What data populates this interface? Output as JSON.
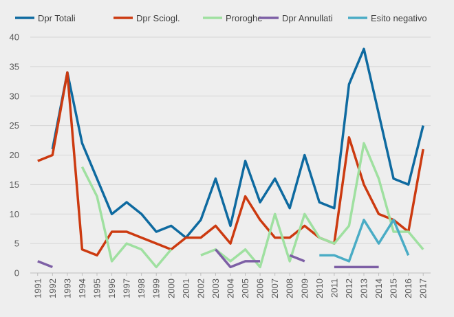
{
  "chart_data": {
    "type": "line",
    "title": "",
    "xlabel": "",
    "ylabel": "",
    "ylim": [
      0,
      40
    ],
    "yticks": [
      "0",
      "5",
      "10",
      "15",
      "20",
      "25",
      "30",
      "35",
      "40"
    ],
    "grid": "horizontal",
    "legend_position": "top",
    "categories": [
      "1991",
      "1992",
      "1993",
      "1994",
      "1995",
      "1996",
      "1997",
      "1998",
      "1999",
      "2000",
      "2001",
      "2002",
      "2003",
      "2004",
      "2005",
      "2006",
      "2007",
      "2008",
      "2009",
      "2010",
      "2011",
      "2012",
      "2013",
      "2014",
      "2015",
      "2016",
      "2017"
    ],
    "series": [
      {
        "name": "Dpr Totali",
        "color": "#0e6aa0",
        "values": [
          null,
          21,
          34,
          22,
          16,
          10,
          12,
          10,
          7,
          8,
          6,
          9,
          16,
          8,
          19,
          12,
          16,
          11,
          20,
          12,
          11,
          32,
          38,
          27,
          16,
          15,
          25
        ]
      },
      {
        "name": "Dpr Sciogl.",
        "color": "#cc3a10",
        "values": [
          19,
          20,
          34,
          4,
          3,
          7,
          7,
          6,
          5,
          4,
          6,
          6,
          8,
          5,
          13,
          9,
          6,
          6,
          8,
          6,
          5,
          23,
          15,
          10,
          9,
          7,
          21
        ]
      },
      {
        "name": "Proroghe",
        "color": "#9fe0a0",
        "values": [
          null,
          null,
          null,
          18,
          13,
          2,
          5,
          4,
          1,
          4,
          null,
          3,
          4,
          2,
          4,
          1,
          10,
          2,
          10,
          6,
          5,
          8,
          22,
          16,
          7,
          7,
          4
        ]
      },
      {
        "name": "Dpr Annullati",
        "color": "#7d5fa5",
        "values": [
          2,
          1,
          null,
          null,
          null,
          null,
          null,
          null,
          null,
          null,
          null,
          null,
          4,
          1,
          2,
          2,
          null,
          3,
          2,
          null,
          1,
          1,
          1,
          1,
          null,
          null,
          null
        ]
      },
      {
        "name": "Esito negativo",
        "color": "#4aacc5",
        "values": [
          null,
          null,
          null,
          null,
          null,
          null,
          null,
          null,
          null,
          null,
          null,
          null,
          null,
          null,
          null,
          null,
          null,
          null,
          null,
          3,
          3,
          2,
          9,
          5,
          9,
          3,
          null
        ]
      }
    ]
  }
}
